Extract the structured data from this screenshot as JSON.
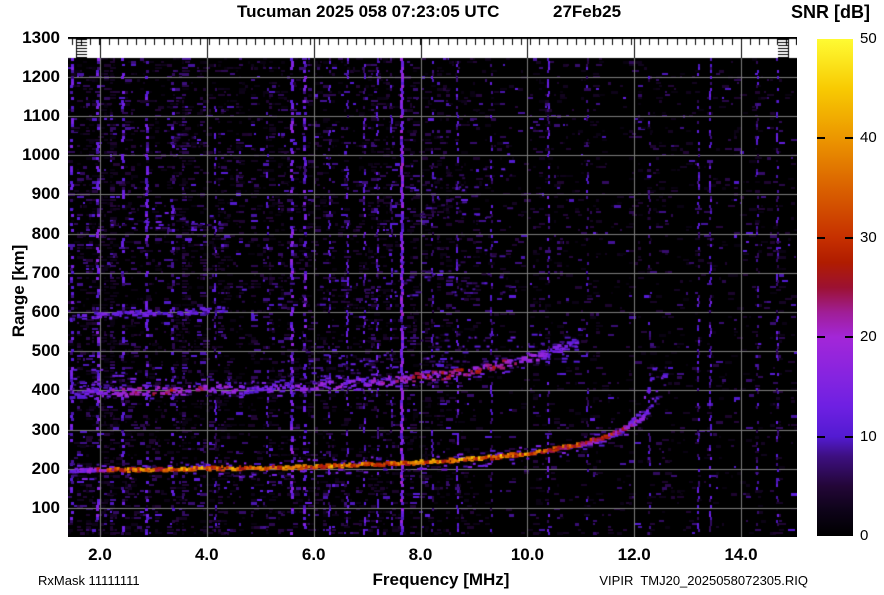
{
  "header": {
    "title": "Tucuman 2025 058 07:23:05 UTC",
    "date": "27Feb25"
  },
  "footer": {
    "rx_mask": "RxMask 11111111",
    "file_label": "VIPIR  TMJ20_2025058072305.RIQ"
  },
  "chart_data": {
    "type": "heatmap",
    "title": "Tucuman 2025 058 07:23:05 UTC",
    "date_label": "27Feb25",
    "xlabel": "Frequency [MHz]",
    "ylabel": "Range [km]",
    "colorbar_label": "SNR [dB]",
    "x_range_mhz": [
      1.4,
      15.05
    ],
    "y_range_km": [
      0,
      1250
    ],
    "x_ticks": [
      2.0,
      4.0,
      6.0,
      8.0,
      10.0,
      12.0,
      14.0
    ],
    "y_ticks": [
      100,
      200,
      300,
      400,
      500,
      600,
      700,
      800,
      900,
      1000,
      1100,
      1200,
      1300
    ],
    "grid": true,
    "legend_position": "right-colorbar",
    "colorbar_ticks": [
      0,
      10,
      20,
      30,
      40,
      50
    ],
    "colorbar_tick_marks": [
      10,
      20,
      30,
      40
    ],
    "colorbar_range_db": [
      0,
      50
    ],
    "colormap_stops": [
      [
        0.0,
        "#000000"
      ],
      [
        0.05,
        "#0d0318"
      ],
      [
        0.1,
        "#230637"
      ],
      [
        0.16,
        "#3d0f80"
      ],
      [
        0.2,
        "#531bd2"
      ],
      [
        0.26,
        "#6e20e2"
      ],
      [
        0.32,
        "#8524e0"
      ],
      [
        0.4,
        "#a326d8"
      ],
      [
        0.45,
        "#a01e96"
      ],
      [
        0.5,
        "#9c1132"
      ],
      [
        0.55,
        "#b01c00"
      ],
      [
        0.6,
        "#c63000"
      ],
      [
        0.7,
        "#da6100"
      ],
      [
        0.8,
        "#ec9600"
      ],
      [
        0.9,
        "#f8ca02"
      ],
      [
        1.0,
        "#fffb33"
      ]
    ],
    "echo_traces": {
      "f_layer_o_mode": {
        "pts": [
          [
            1.45,
            195
          ],
          [
            2,
            197
          ],
          [
            3,
            199
          ],
          [
            4,
            201
          ],
          [
            5,
            203
          ],
          [
            6,
            206
          ],
          [
            7,
            211
          ],
          [
            7.5,
            214
          ],
          [
            8,
            217
          ],
          [
            8.5,
            221
          ],
          [
            9,
            226
          ],
          [
            9.5,
            232
          ],
          [
            10,
            240
          ],
          [
            10.4,
            248
          ],
          [
            10.8,
            258
          ],
          [
            11.1,
            268
          ],
          [
            11.4,
            280
          ],
          [
            11.7,
            295
          ],
          [
            11.95,
            312
          ],
          [
            12.15,
            332
          ],
          [
            12.3,
            355
          ],
          [
            12.42,
            382
          ],
          [
            12.52,
            414
          ],
          [
            12.58,
            442
          ],
          [
            12.61,
            460
          ]
        ],
        "snr_db": [
          [
            1.45,
            11
          ],
          [
            1.75,
            16
          ],
          [
            2.0,
            24
          ],
          [
            2.2,
            32
          ],
          [
            2.6,
            35
          ],
          [
            3.5,
            36
          ],
          [
            5,
            35
          ],
          [
            6,
            35
          ],
          [
            7,
            36
          ],
          [
            8,
            37
          ],
          [
            9,
            38
          ],
          [
            9.7,
            38
          ],
          [
            10.2,
            35
          ],
          [
            10.8,
            31
          ],
          [
            11.3,
            28
          ],
          [
            11.7,
            24
          ],
          [
            12.0,
            20
          ],
          [
            12.2,
            16
          ],
          [
            12.35,
            13
          ],
          [
            12.61,
            12
          ]
        ],
        "mult": 1,
        "p": 1.0,
        "jit": 1.5,
        "h": 3,
        "halo": true,
        "dotR": 350,
        "critical_freq_mhz": 12.6
      },
      "f_layer_x_mode": {
        "pts": [
          [
            10.7,
            252
          ],
          [
            11.1,
            262
          ],
          [
            11.4,
            274
          ],
          [
            11.65,
            290
          ],
          [
            11.85,
            308
          ],
          [
            12.0,
            330
          ],
          [
            12.12,
            356
          ],
          [
            12.22,
            388
          ],
          [
            12.3,
            420
          ],
          [
            12.35,
            448
          ],
          [
            12.37,
            462
          ]
        ],
        "snr_db": [
          [
            10.7,
            12
          ],
          [
            11.5,
            14
          ],
          [
            12.0,
            14
          ],
          [
            12.37,
            12
          ]
        ],
        "mult": 1,
        "p": 0.8,
        "jit": 1.5,
        "h": 3,
        "halo": false,
        "dotR": 330
      },
      "second_hop_2f": {
        "pts": [
          [
            1.45,
            195
          ],
          [
            2,
            197
          ],
          [
            3,
            199
          ],
          [
            4,
            201
          ],
          [
            5,
            203
          ],
          [
            6,
            206
          ],
          [
            7,
            211
          ],
          [
            7.5,
            214
          ],
          [
            8,
            217
          ],
          [
            8.5,
            221
          ],
          [
            9,
            226
          ],
          [
            9.5,
            232
          ],
          [
            10,
            240
          ],
          [
            10.4,
            248
          ],
          [
            10.8,
            258
          ],
          [
            10.95,
            262
          ]
        ],
        "snr_db": [
          [
            1.45,
            12
          ],
          [
            2.1,
            16
          ],
          [
            2.5,
            21
          ],
          [
            3.0,
            23
          ],
          [
            3.6,
            23
          ],
          [
            4.2,
            19
          ],
          [
            4.7,
            13
          ],
          [
            5.3,
            15
          ],
          [
            6.0,
            16
          ],
          [
            7.0,
            17
          ],
          [
            7.6,
            20
          ],
          [
            8.2,
            23
          ],
          [
            9.0,
            24
          ],
          [
            9.6,
            22
          ],
          [
            10.2,
            17
          ],
          [
            10.95,
            13
          ]
        ],
        "mult": 2,
        "p": 0.85,
        "jit": 4,
        "h": 3,
        "halo": true,
        "dotR": 9999
      },
      "third_hop_3f": {
        "pts": [
          [
            1.45,
            195
          ],
          [
            2,
            197
          ],
          [
            3,
            199
          ],
          [
            4.35,
            202
          ]
        ],
        "snr_db": [
          [
            1.45,
            10
          ],
          [
            2.0,
            13
          ],
          [
            3.0,
            13
          ],
          [
            4.35,
            10
          ]
        ],
        "mult": 3,
        "p": 0.7,
        "jit": 3,
        "h": 3,
        "halo": false,
        "dotR": 9999
      }
    },
    "spread_clouds": [
      {
        "f": [
          1.5,
          2.6
        ],
        "km": [
          405,
          455
        ],
        "p": 0.3,
        "snr": 11
      },
      {
        "f": [
          2.6,
          4.4
        ],
        "km": [
          400,
          445
        ],
        "p": 0.2,
        "snr": 10
      },
      {
        "f": [
          5.4,
          8.0
        ],
        "km": [
          430,
          500
        ],
        "p": 0.17,
        "snr": 9
      },
      {
        "f": [
          8.0,
          9.8
        ],
        "km": [
          450,
          545
        ],
        "p": 0.19,
        "snr": 10
      },
      {
        "f": [
          9.8,
          11.2
        ],
        "km": [
          470,
          560
        ],
        "p": 0.11,
        "snr": 8
      },
      {
        "f": [
          4.6,
          7.4
        ],
        "km": [
          615,
          690
        ],
        "p": 0.12,
        "snr": 8
      },
      {
        "f": [
          7.4,
          9.6
        ],
        "km": [
          640,
          760
        ],
        "p": 0.12,
        "snr": 8
      },
      {
        "f": [
          2.2,
          4.3
        ],
        "km": [
          815,
          855
        ],
        "p": 0.27,
        "snr": 10
      },
      {
        "f": [
          7.6,
          9.7
        ],
        "km": [
          840,
          1005
        ],
        "p": 0.11,
        "snr": 8
      },
      {
        "f": [
          3.0,
          4.0
        ],
        "km": [
          1020,
          1055
        ],
        "p": 0.2,
        "snr": 8
      }
    ],
    "rfi_lines": [
      [
        1.46,
        11,
        0.5,
        3
      ],
      [
        1.95,
        12,
        0.5,
        3
      ],
      [
        2.42,
        10,
        0.4,
        3
      ],
      [
        2.86,
        11,
        0.45,
        3
      ],
      [
        3.35,
        9,
        0.35,
        3
      ],
      [
        4.15,
        9,
        0.3,
        2
      ],
      [
        5.12,
        9,
        0.3,
        2
      ],
      [
        5.57,
        13,
        0.6,
        3
      ],
      [
        5.82,
        12,
        0.5,
        3
      ],
      [
        6.28,
        9,
        0.35,
        2
      ],
      [
        6.62,
        10,
        0.4,
        2
      ],
      [
        6.95,
        10,
        0.4,
        2
      ],
      [
        7.18,
        10,
        0.4,
        2
      ],
      [
        7.45,
        9,
        0.35,
        2
      ],
      [
        7.63,
        15,
        0.92,
        3
      ],
      [
        8.22,
        9,
        0.4,
        2
      ],
      [
        8.68,
        10,
        0.45,
        2
      ],
      [
        9.32,
        9,
        0.4,
        2
      ],
      [
        10.38,
        10,
        0.45,
        2
      ],
      [
        11.12,
        8,
        0.3,
        2
      ],
      [
        12.28,
        8,
        0.3,
        2
      ],
      [
        13.2,
        9,
        0.45,
        2
      ],
      [
        13.42,
        10,
        0.5,
        2
      ],
      [
        14.3,
        8,
        0.3,
        2
      ],
      [
        14.68,
        9,
        0.4,
        2
      ]
    ],
    "noise_density_by_freq": [
      [
        2.3,
        0.34
      ],
      [
        4.4,
        0.3
      ],
      [
        5.3,
        0.22
      ],
      [
        7.9,
        0.26
      ],
      [
        9.9,
        0.19
      ],
      [
        11.3,
        0.13
      ],
      [
        13.6,
        0.11
      ],
      [
        15.2,
        0.13
      ]
    ],
    "grid_color": "#7d7d7d",
    "background_color": "#000000"
  }
}
